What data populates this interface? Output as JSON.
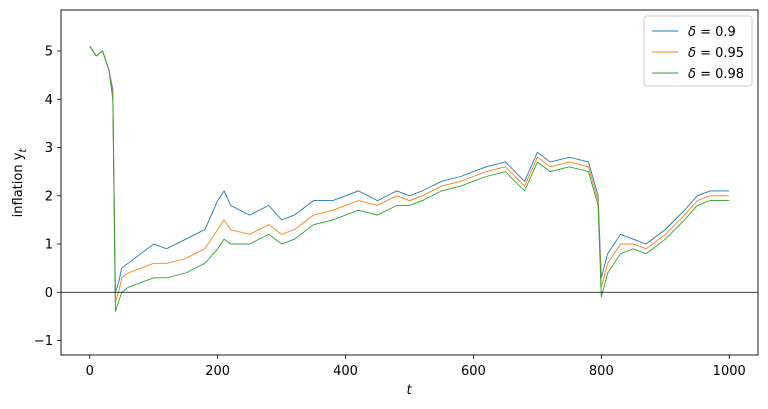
{
  "chart_data": {
    "type": "line",
    "title": "",
    "xlabel": "t",
    "ylabel": "inflation y",
    "ylabel_subscript": "t",
    "xlim": [
      -45,
      1045
    ],
    "ylim": [
      -1.3,
      5.85
    ],
    "xticks": [
      0,
      200,
      400,
      600,
      800,
      1000
    ],
    "xtick_labels": [
      "0",
      "200",
      "400",
      "600",
      "800",
      "1000"
    ],
    "yticks": [
      -1,
      0,
      1,
      2,
      3,
      4,
      5
    ],
    "ytick_labels": [
      "−1",
      "0",
      "1",
      "2",
      "3",
      "4",
      "5"
    ],
    "zero_line": 0,
    "grid": false,
    "legend_position": "top-right",
    "legend_symbol": "δ",
    "series": [
      {
        "name": "0.9",
        "color": "#1f77b4",
        "x": [
          0,
          10,
          20,
          30,
          36,
          40,
          45,
          50,
          60,
          80,
          100,
          120,
          150,
          180,
          200,
          210,
          220,
          250,
          280,
          300,
          320,
          350,
          380,
          400,
          420,
          450,
          480,
          500,
          520,
          550,
          580,
          600,
          620,
          650,
          680,
          700,
          720,
          750,
          780,
          795,
          800,
          810,
          830,
          850,
          870,
          900,
          930,
          950,
          970,
          1000
        ],
        "y": [
          5.1,
          4.9,
          5.0,
          4.6,
          4.2,
          0.0,
          0.2,
          0.5,
          0.6,
          0.8,
          1.0,
          0.9,
          1.1,
          1.3,
          1.9,
          2.1,
          1.8,
          1.6,
          1.8,
          1.5,
          1.6,
          1.9,
          1.9,
          2.0,
          2.1,
          1.9,
          2.1,
          2.0,
          2.1,
          2.3,
          2.4,
          2.5,
          2.6,
          2.7,
          2.3,
          2.9,
          2.7,
          2.8,
          2.7,
          2.0,
          0.3,
          0.8,
          1.2,
          1.1,
          1.0,
          1.3,
          1.7,
          2.0,
          2.1,
          2.1
        ]
      },
      {
        "name": "0.95",
        "color": "#ff7f0e",
        "x": [
          0,
          10,
          20,
          30,
          36,
          40,
          45,
          50,
          60,
          80,
          100,
          120,
          150,
          180,
          200,
          210,
          220,
          250,
          280,
          300,
          320,
          350,
          380,
          400,
          420,
          450,
          480,
          500,
          520,
          550,
          580,
          600,
          620,
          650,
          680,
          700,
          720,
          750,
          780,
          795,
          800,
          810,
          830,
          850,
          870,
          900,
          930,
          950,
          970,
          1000
        ],
        "y": [
          5.1,
          4.9,
          5.0,
          4.6,
          4.1,
          -0.2,
          0.0,
          0.3,
          0.4,
          0.5,
          0.6,
          0.6,
          0.7,
          0.9,
          1.3,
          1.5,
          1.3,
          1.2,
          1.4,
          1.2,
          1.3,
          1.6,
          1.7,
          1.8,
          1.9,
          1.8,
          2.0,
          1.9,
          2.0,
          2.2,
          2.3,
          2.4,
          2.5,
          2.6,
          2.2,
          2.8,
          2.6,
          2.7,
          2.6,
          1.9,
          0.1,
          0.6,
          1.0,
          1.0,
          0.9,
          1.2,
          1.6,
          1.9,
          2.0,
          2.0
        ]
      },
      {
        "name": "0.98",
        "color": "#2ca02c",
        "x": [
          0,
          10,
          20,
          30,
          36,
          40,
          45,
          50,
          60,
          80,
          100,
          120,
          150,
          180,
          200,
          210,
          220,
          250,
          280,
          300,
          320,
          350,
          380,
          400,
          420,
          450,
          480,
          500,
          520,
          550,
          580,
          600,
          620,
          650,
          680,
          700,
          720,
          750,
          780,
          795,
          800,
          810,
          830,
          850,
          870,
          900,
          930,
          950,
          970,
          1000
        ],
        "y": [
          5.1,
          4.9,
          5.0,
          4.6,
          4.0,
          -0.4,
          -0.2,
          0.0,
          0.1,
          0.2,
          0.3,
          0.3,
          0.4,
          0.6,
          0.9,
          1.1,
          1.0,
          1.0,
          1.2,
          1.0,
          1.1,
          1.4,
          1.5,
          1.6,
          1.7,
          1.6,
          1.8,
          1.8,
          1.9,
          2.1,
          2.2,
          2.3,
          2.4,
          2.5,
          2.1,
          2.7,
          2.5,
          2.6,
          2.5,
          1.8,
          -0.1,
          0.4,
          0.8,
          0.9,
          0.8,
          1.1,
          1.5,
          1.8,
          1.9,
          1.9
        ]
      }
    ]
  }
}
